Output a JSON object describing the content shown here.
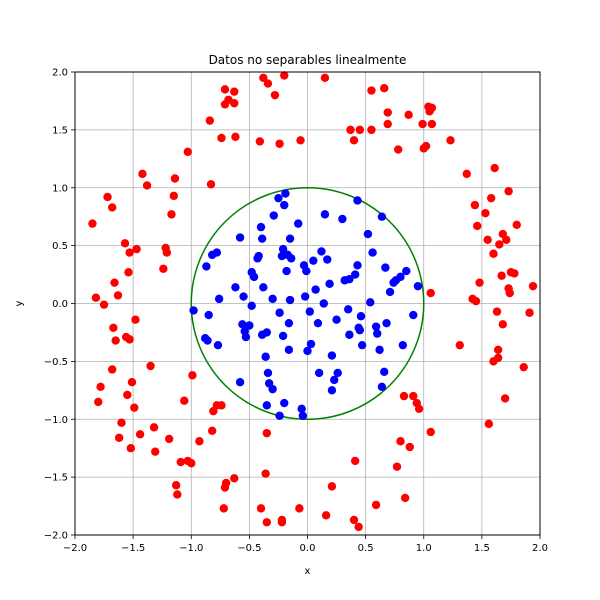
{
  "chart_data": {
    "type": "scatter",
    "title": "Datos no separables linealmente",
    "xlabel": "x",
    "ylabel": "y",
    "xlim": [
      -2.0,
      2.0
    ],
    "ylim": [
      -2.0,
      2.0
    ],
    "xticks": [
      "−2.0",
      "−1.5",
      "−1.0",
      "−0.5",
      "0.0",
      "0.5",
      "1.0",
      "1.5",
      "2.0"
    ],
    "yticks": [
      "−2.0",
      "−1.5",
      "−1.0",
      "−0.5",
      "0.0",
      "0.5",
      "1.0",
      "1.5",
      "2.0"
    ],
    "grid": true,
    "colors": {
      "inside": "#0000ff",
      "outside": "#ff0000",
      "boundary": "#008000",
      "grid": "#b0b0b0"
    },
    "boundary": {
      "shape": "circle",
      "center": [
        0.0,
        0.0
      ],
      "radius": 1.0
    },
    "series": [
      {
        "color": "#0000ff",
        "points": [
          [
            -0.87,
            0.32
          ],
          [
            -0.82,
            0.42
          ],
          [
            -0.78,
            0.44
          ],
          [
            -0.76,
            0.04
          ],
          [
            -0.77,
            -0.36
          ],
          [
            -0.86,
            -0.32
          ],
          [
            -0.85,
            -0.1
          ],
          [
            -0.98,
            -0.06
          ],
          [
            -0.62,
            0.14
          ],
          [
            -0.58,
            0.57
          ],
          [
            -0.56,
            -0.18
          ],
          [
            -0.54,
            -0.24
          ],
          [
            -0.53,
            -0.29
          ],
          [
            -0.5,
            -0.19
          ],
          [
            -0.58,
            -0.68
          ],
          [
            -0.48,
            0.27
          ],
          [
            -0.46,
            0.23
          ],
          [
            -0.43,
            0.39
          ],
          [
            -0.42,
            0.41
          ],
          [
            -0.4,
            0.66
          ],
          [
            -0.39,
            0.56
          ],
          [
            -0.38,
            0.14
          ],
          [
            -0.35,
            -0.25
          ],
          [
            -0.39,
            -0.27
          ],
          [
            -0.36,
            -0.46
          ],
          [
            -0.34,
            -0.6
          ],
          [
            -0.33,
            -0.69
          ],
          [
            -0.3,
            -0.74
          ],
          [
            -0.29,
            0.76
          ],
          [
            -0.25,
            0.91
          ],
          [
            -0.2,
            0.85
          ],
          [
            -0.19,
            0.95
          ],
          [
            -0.22,
            0.41
          ],
          [
            -0.21,
            0.47
          ],
          [
            -0.17,
            0.42
          ],
          [
            -0.15,
            0.56
          ],
          [
            -0.14,
            0.39
          ],
          [
            -0.18,
            0.28
          ],
          [
            -0.15,
            0.03
          ],
          [
            -0.16,
            -0.17
          ],
          [
            -0.21,
            -0.28
          ],
          [
            -0.24,
            -0.08
          ],
          [
            -0.16,
            -0.4
          ],
          [
            -0.2,
            -0.86
          ],
          [
            -0.24,
            -0.97
          ],
          [
            -0.35,
            -0.88
          ],
          [
            -0.05,
            -0.91
          ],
          [
            -0.04,
            -0.97
          ],
          [
            -0.03,
            0.33
          ],
          [
            -0.01,
            0.28
          ],
          [
            -0.02,
            0.06
          ],
          [
            0.02,
            -0.07
          ],
          [
            0.0,
            -0.41
          ],
          [
            0.03,
            -0.35
          ],
          [
            0.05,
            0.37
          ],
          [
            0.07,
            0.12
          ],
          [
            0.09,
            -0.17
          ],
          [
            0.1,
            -0.6
          ],
          [
            0.12,
            0.45
          ],
          [
            0.14,
            0.0
          ],
          [
            0.15,
            0.77
          ],
          [
            0.17,
            0.38
          ],
          [
            0.19,
            0.17
          ],
          [
            0.21,
            -0.45
          ],
          [
            0.23,
            -0.66
          ],
          [
            0.21,
            -0.75
          ],
          [
            0.26,
            -0.6
          ],
          [
            0.3,
            0.73
          ],
          [
            0.32,
            0.2
          ],
          [
            0.36,
            0.21
          ],
          [
            0.36,
            -0.27
          ],
          [
            0.41,
            0.25
          ],
          [
            0.43,
            0.33
          ],
          [
            0.43,
            0.89
          ],
          [
            0.44,
            -0.21
          ],
          [
            0.45,
            -0.23
          ],
          [
            0.47,
            -0.36
          ],
          [
            0.52,
            0.6
          ],
          [
            0.54,
            0.01
          ],
          [
            0.56,
            0.44
          ],
          [
            0.59,
            -0.2
          ],
          [
            0.6,
            -0.26
          ],
          [
            0.62,
            -0.4
          ],
          [
            0.64,
            0.75
          ],
          [
            0.64,
            -0.72
          ],
          [
            0.66,
            -0.59
          ],
          [
            0.67,
            0.31
          ],
          [
            0.68,
            -0.17
          ],
          [
            0.71,
            0.1
          ],
          [
            0.74,
            0.18
          ],
          [
            0.76,
            0.2
          ],
          [
            0.8,
            0.23
          ],
          [
            0.82,
            -0.36
          ],
          [
            0.85,
            0.28
          ],
          [
            0.91,
            -0.1
          ],
          [
            0.95,
            0.15
          ],
          [
            -0.88,
            -0.3
          ],
          [
            -0.55,
            0.06
          ],
          [
            -0.3,
            0.04
          ],
          [
            0.25,
            -0.14
          ],
          [
            -0.08,
            0.69
          ],
          [
            0.35,
            -0.05
          ],
          [
            -0.48,
            -0.02
          ],
          [
            0.46,
            -0.11
          ]
        ]
      },
      {
        "color": "#ff0000",
        "points": [
          [
            -1.85,
            0.69
          ],
          [
            -1.82,
            0.05
          ],
          [
            -1.78,
            -0.72
          ],
          [
            -1.8,
            -0.85
          ],
          [
            -1.75,
            -0.01
          ],
          [
            -1.72,
            0.92
          ],
          [
            -1.68,
            0.83
          ],
          [
            -1.67,
            -0.21
          ],
          [
            -1.68,
            -0.57
          ],
          [
            -1.66,
            0.18
          ],
          [
            -1.65,
            -0.32
          ],
          [
            -1.63,
            0.07
          ],
          [
            -1.62,
            -1.16
          ],
          [
            -1.6,
            -1.03
          ],
          [
            -1.57,
            0.52
          ],
          [
            -1.56,
            -0.29
          ],
          [
            -1.55,
            -0.79
          ],
          [
            -1.54,
            0.27
          ],
          [
            -1.53,
            0.44
          ],
          [
            -1.52,
            -1.25
          ],
          [
            -1.53,
            -0.31
          ],
          [
            -1.51,
            -0.68
          ],
          [
            -1.49,
            -0.9
          ],
          [
            -1.48,
            -0.14
          ],
          [
            -1.47,
            0.47
          ],
          [
            -1.44,
            -1.13
          ],
          [
            -1.42,
            1.12
          ],
          [
            -1.38,
            1.02
          ],
          [
            -1.35,
            -0.54
          ],
          [
            -1.32,
            -1.07
          ],
          [
            -1.31,
            -1.28
          ],
          [
            -1.24,
            0.3
          ],
          [
            -1.22,
            0.48
          ],
          [
            -1.21,
            0.44
          ],
          [
            -1.19,
            -1.17
          ],
          [
            -1.17,
            0.77
          ],
          [
            -1.15,
            0.93
          ],
          [
            -1.14,
            1.08
          ],
          [
            -1.13,
            -1.57
          ],
          [
            -1.12,
            -1.65
          ],
          [
            -1.09,
            -1.37
          ],
          [
            -1.06,
            -0.84
          ],
          [
            -1.03,
            -1.36
          ],
          [
            -1.03,
            1.31
          ],
          [
            -1.0,
            -1.38
          ],
          [
            -0.99,
            -0.62
          ],
          [
            -0.93,
            -1.19
          ],
          [
            -0.84,
            1.58
          ],
          [
            -0.83,
            1.03
          ],
          [
            -0.82,
            -1.1
          ],
          [
            -0.81,
            -0.93
          ],
          [
            -0.78,
            -0.88
          ],
          [
            -0.74,
            -0.88
          ],
          [
            -0.74,
            1.43
          ],
          [
            -0.72,
            -1.77
          ],
          [
            -0.7,
            -1.55
          ],
          [
            -0.71,
            -1.59
          ],
          [
            -0.71,
            1.72
          ],
          [
            -0.71,
            1.85
          ],
          [
            -0.68,
            1.76
          ],
          [
            -0.63,
            1.73
          ],
          [
            -0.63,
            1.83
          ],
          [
            -0.63,
            -1.51
          ],
          [
            -0.62,
            1.44
          ],
          [
            -0.41,
            1.4
          ],
          [
            -0.4,
            -1.77
          ],
          [
            -0.38,
            1.95
          ],
          [
            -0.36,
            -1.47
          ],
          [
            -0.35,
            -1.12
          ],
          [
            -0.35,
            -1.89
          ],
          [
            -0.34,
            1.9
          ],
          [
            -0.28,
            1.8
          ],
          [
            -0.24,
            1.38
          ],
          [
            -0.22,
            -1.87
          ],
          [
            -0.22,
            -1.89
          ],
          [
            -0.2,
            1.97
          ],
          [
            -0.07,
            -1.77
          ],
          [
            -0.06,
            1.41
          ],
          [
            0.15,
            1.95
          ],
          [
            0.16,
            -1.83
          ],
          [
            0.21,
            -1.58
          ],
          [
            0.37,
            1.5
          ],
          [
            0.4,
            -1.87
          ],
          [
            0.4,
            1.41
          ],
          [
            0.41,
            -1.36
          ],
          [
            0.44,
            -1.93
          ],
          [
            0.45,
            1.5
          ],
          [
            0.55,
            1.84
          ],
          [
            0.55,
            1.5
          ],
          [
            0.59,
            -1.74
          ],
          [
            0.66,
            1.86
          ],
          [
            0.69,
            1.65
          ],
          [
            0.69,
            1.55
          ],
          [
            0.77,
            -1.41
          ],
          [
            0.78,
            1.33
          ],
          [
            0.8,
            -1.19
          ],
          [
            0.83,
            -0.8
          ],
          [
            0.84,
            -1.68
          ],
          [
            0.87,
            1.63
          ],
          [
            0.88,
            -1.24
          ],
          [
            0.91,
            -0.8
          ],
          [
            0.94,
            -0.86
          ],
          [
            0.96,
            -0.91
          ],
          [
            0.99,
            1.55
          ],
          [
            1.0,
            1.34
          ],
          [
            1.02,
            1.36
          ],
          [
            1.04,
            1.7
          ],
          [
            1.05,
            1.66
          ],
          [
            1.06,
            0.09
          ],
          [
            1.06,
            -1.11
          ],
          [
            1.07,
            1.55
          ],
          [
            1.07,
            1.69
          ],
          [
            1.23,
            1.41
          ],
          [
            1.31,
            -0.36
          ],
          [
            1.37,
            1.12
          ],
          [
            1.42,
            0.04
          ],
          [
            1.44,
            0.85
          ],
          [
            1.45,
            0.02
          ],
          [
            1.46,
            0.67
          ],
          [
            1.48,
            0.18
          ],
          [
            1.53,
            0.78
          ],
          [
            1.55,
            0.55
          ],
          [
            1.56,
            -1.04
          ],
          [
            1.58,
            0.91
          ],
          [
            1.6,
            0.43
          ],
          [
            1.6,
            -0.5
          ],
          [
            1.61,
            1.17
          ],
          [
            1.63,
            -0.07
          ],
          [
            1.64,
            -0.4
          ],
          [
            1.64,
            -0.47
          ],
          [
            1.65,
            0.51
          ],
          [
            1.67,
            0.24
          ],
          [
            1.68,
            0.6
          ],
          [
            1.68,
            -0.18
          ],
          [
            1.7,
            -0.82
          ],
          [
            1.71,
            0.55
          ],
          [
            1.73,
            0.97
          ],
          [
            1.73,
            0.13
          ],
          [
            1.74,
            0.09
          ],
          [
            1.75,
            0.27
          ],
          [
            1.78,
            0.26
          ],
          [
            1.8,
            0.68
          ],
          [
            1.86,
            -0.55
          ],
          [
            1.91,
            -0.08
          ],
          [
            1.94,
            0.15
          ]
        ]
      }
    ]
  }
}
